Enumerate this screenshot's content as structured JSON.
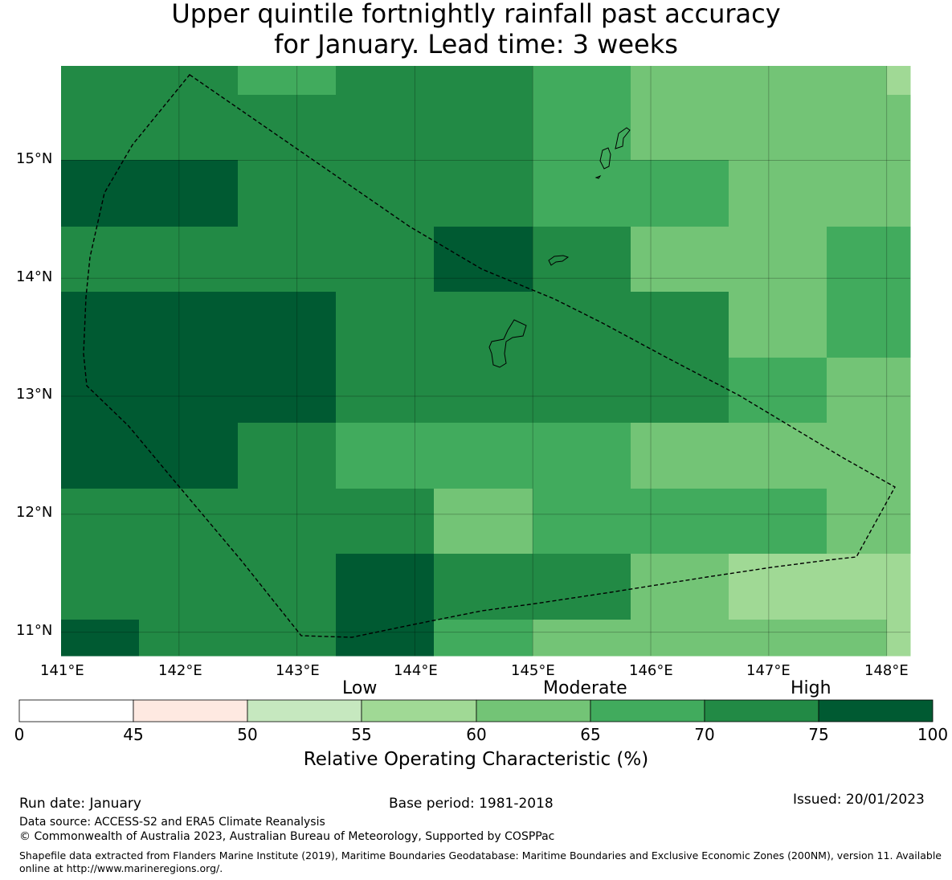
{
  "title": {
    "line1": "Upper quintile fortnightly rainfall past accuracy",
    "line2": "for January. Lead time: 3 weeks"
  },
  "map": {
    "lon_labels": [
      "141°E",
      "142°E",
      "143°E",
      "144°E",
      "145°E",
      "146°E",
      "147°E",
      "148°E"
    ],
    "lat_labels": [
      "15°N",
      "14°N",
      "13°N",
      "12°N",
      "11°N"
    ],
    "lon_range": [
      141.0,
      148.2
    ],
    "lat_range": [
      10.8,
      15.8
    ],
    "cell_rows_roc_band": [
      [
        "70-75",
        "70-75",
        "65-70",
        "70-75",
        "70-75",
        "65-70",
        "60-65",
        "60-65",
        "60-65",
        "55-60"
      ],
      [
        "70-75",
        "70-75",
        "70-75",
        "70-75",
        "70-75",
        "65-70",
        "60-65",
        "60-65",
        "60-65",
        "60-65"
      ],
      [
        "75-100",
        "75-100",
        "70-75",
        "70-75",
        "70-75",
        "65-70",
        "65-70",
        "60-65",
        "60-65",
        "60-65"
      ],
      [
        "70-75",
        "70-75",
        "70-75",
        "70-75",
        "75-100",
        "70-75",
        "60-65",
        "60-65",
        "65-70",
        "65-70"
      ],
      [
        "75-100",
        "75-100",
        "75-100",
        "70-75",
        "70-75",
        "70-75",
        "70-75",
        "60-65",
        "65-70",
        "65-70"
      ],
      [
        "75-100",
        "75-100",
        "75-100",
        "70-75",
        "70-75",
        "70-75",
        "70-75",
        "65-70",
        "60-65",
        "60-65"
      ],
      [
        "75-100",
        "75-100",
        "70-75",
        "65-70",
        "65-70",
        "65-70",
        "60-65",
        "60-65",
        "60-65",
        "60-65"
      ],
      [
        "70-75",
        "70-75",
        "70-75",
        "70-75",
        "60-65",
        "65-70",
        "65-70",
        "65-70",
        "60-65",
        "60-65"
      ],
      [
        "70-75",
        "70-75",
        "70-75",
        "75-100",
        "70-75",
        "70-75",
        "60-65",
        "55-60",
        "55-60",
        "55-60"
      ],
      [
        "75-100",
        "70-75",
        "70-75",
        "75-100",
        "65-70",
        "60-65",
        "60-65",
        "60-65",
        "60-65",
        "55-60"
      ]
    ]
  },
  "colorbar": {
    "categories": [
      "Low",
      "Moderate",
      "High"
    ],
    "ticks": [
      "0",
      "45",
      "50",
      "55",
      "60",
      "65",
      "70",
      "75",
      "100"
    ],
    "colors": [
      "#ffffff",
      "#fee9e1",
      "#c6e8bf",
      "#a0d995",
      "#73c476",
      "#41ab5d",
      "#228a45",
      "#005a32"
    ],
    "title": "Relative Operating Characteristic (%)"
  },
  "footer": {
    "run_date": "Run date: January",
    "base_period": "Base period: 1981-2018",
    "issued": "Issued: 20/01/2023",
    "data_source": "Data source: ACCESS-S2 and ERA5 Climate Reanalysis",
    "copyright": "© Commonwealth of Australia 2023, Australian Bureau of Meteorology, Supported by COSPPac",
    "shapefile": "Shapefile data extracted from Flanders Marine Institute (2019), Maritime Boundaries Geodatabase: Maritime Boundaries and Exclusive Economic Zones (200NM), version 11. Available online at http://www.marineregions.org/."
  }
}
